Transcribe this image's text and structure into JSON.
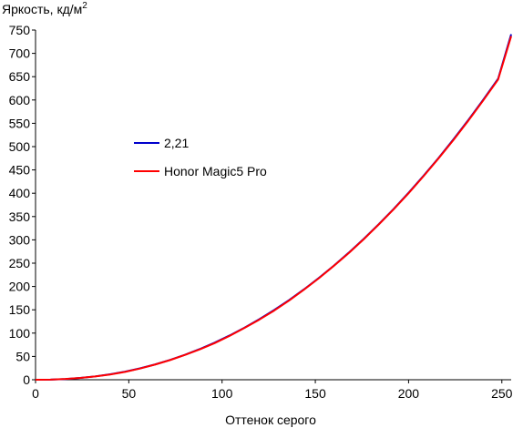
{
  "chart_data": {
    "type": "line",
    "title": "",
    "ylabel": "Яркость, кд/м",
    "ylabel_superscript": "2",
    "xlabel": "Оттенок серого",
    "xlim": [
      0,
      255
    ],
    "ylim": [
      0,
      750
    ],
    "xticks": [
      0,
      50,
      100,
      150,
      200,
      250
    ],
    "yticks": [
      0,
      50,
      100,
      150,
      200,
      250,
      300,
      350,
      400,
      450,
      500,
      550,
      600,
      650,
      700,
      750
    ],
    "grid": false,
    "legend_position": "center-left",
    "series": [
      {
        "name": "2,21",
        "color": "#0000cc",
        "x": [
          0,
          8,
          16,
          24,
          32,
          40,
          48,
          56,
          64,
          72,
          80,
          88,
          96,
          104,
          112,
          120,
          128,
          136,
          144,
          152,
          160,
          168,
          176,
          184,
          192,
          200,
          208,
          216,
          224,
          232,
          240,
          248,
          255
        ],
        "y": [
          0,
          0.3,
          1.5,
          3.8,
          7.2,
          11.7,
          17.4,
          24.4,
          32.7,
          42.3,
          53.3,
          65.7,
          79.5,
          94.8,
          111.6,
          129.9,
          149.7,
          171.1,
          194.1,
          218.7,
          244.9,
          272.8,
          302.3,
          333.5,
          366.4,
          401.0,
          437.4,
          475.4,
          515.3,
          556.9,
          600.3,
          645.5,
          741.0
        ]
      },
      {
        "name": "Honor Magic5 Pro",
        "color": "#ff0000",
        "x": [
          0,
          8,
          16,
          24,
          32,
          40,
          48,
          56,
          64,
          72,
          80,
          88,
          96,
          104,
          112,
          120,
          128,
          136,
          144,
          152,
          160,
          168,
          176,
          184,
          192,
          200,
          208,
          216,
          224,
          232,
          240,
          248,
          255
        ],
        "y": [
          0,
          0.3,
          1.6,
          3.9,
          7.0,
          11.2,
          16.8,
          24.0,
          32.5,
          42.0,
          53.0,
          65.0,
          78.5,
          94.0,
          111.0,
          129.0,
          148.5,
          170.0,
          193.5,
          218.0,
          244.5,
          272.0,
          301.5,
          333.0,
          365.5,
          400.0,
          436.5,
          474.5,
          514.0,
          555.5,
          599.0,
          644.0,
          737.0
        ]
      }
    ]
  }
}
